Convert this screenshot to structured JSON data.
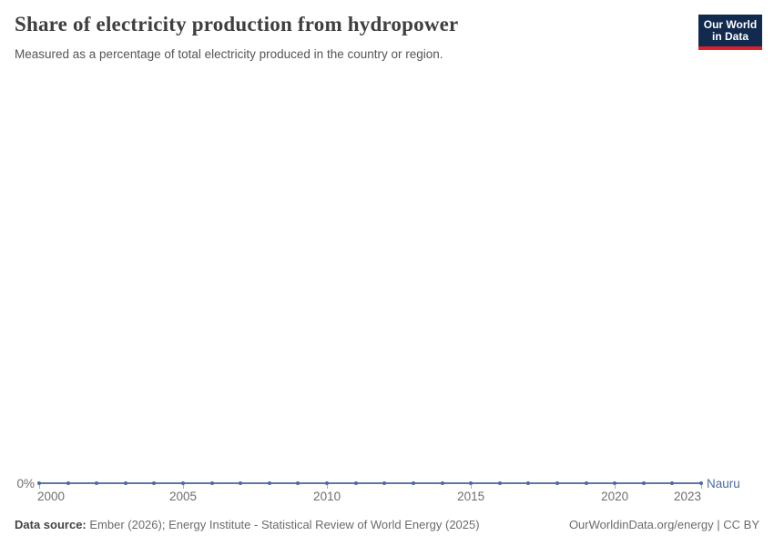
{
  "header": {
    "title": "Share of electricity production from hydropower",
    "subtitle": "Measured as a percentage of total electricity produced in the country or region.",
    "logo": {
      "line1": "Our World",
      "line2": "in Data",
      "bg_color": "#112a4e",
      "accent_color": "#dc2227"
    }
  },
  "chart_data": {
    "type": "line",
    "title": "Share of electricity production from hydropower",
    "xlabel": "",
    "ylabel": "",
    "unit": "%",
    "x": [
      2000,
      2001,
      2002,
      2003,
      2004,
      2005,
      2006,
      2007,
      2008,
      2009,
      2010,
      2011,
      2012,
      2013,
      2014,
      2015,
      2016,
      2017,
      2018,
      2019,
      2020,
      2021,
      2022,
      2023
    ],
    "series": [
      {
        "name": "Nauru",
        "color": "#4c6a9c",
        "values": [
          0,
          0,
          0,
          0,
          0,
          0,
          0,
          0,
          0,
          0,
          0,
          0,
          0,
          0,
          0,
          0,
          0,
          0,
          0,
          0,
          0,
          0,
          0,
          0
        ]
      }
    ],
    "x_ticks": [
      2000,
      2005,
      2010,
      2015,
      2020,
      2023
    ],
    "y_ticks": [
      {
        "value": 0,
        "label": "0%"
      }
    ],
    "xlim": [
      2000,
      2023
    ],
    "ylim": [
      0,
      0
    ],
    "grid": false,
    "legend_position": "end-of-line"
  },
  "footer": {
    "source_label": "Data source:",
    "source_text": " Ember (2026); Energy Institute - Statistical Review of World Energy (2025)",
    "rights": "OurWorldinData.org/energy | CC BY"
  }
}
